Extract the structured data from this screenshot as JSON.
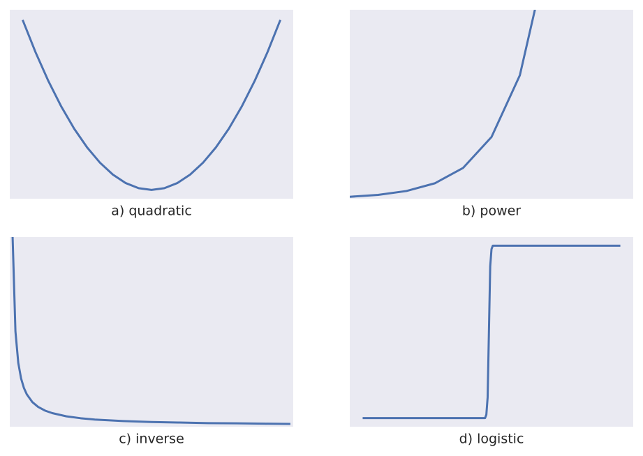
{
  "chart_data": [
    {
      "type": "line",
      "title": "a) quadratic",
      "color": "#4c72b0",
      "x": [
        -5,
        -4.5,
        -4,
        -3.5,
        -3,
        -2.5,
        -2,
        -1.5,
        -1,
        -0.5,
        0,
        0.5,
        1,
        1.5,
        2,
        2.5,
        3,
        3.5,
        4,
        4.5,
        5
      ],
      "values": [
        25,
        20.25,
        16,
        12.25,
        9,
        6.25,
        4,
        2.25,
        1,
        0.25,
        0,
        0.25,
        1,
        2.25,
        4,
        6.25,
        9,
        12.25,
        16,
        20.25,
        25
      ],
      "xlim": [
        -5.5,
        5.5
      ],
      "ylim": [
        -1.3,
        26.5
      ]
    },
    {
      "type": "line",
      "title": "b) power",
      "color": "#4c72b0",
      "x": [
        0,
        1,
        2,
        3,
        4,
        5,
        6,
        7
      ],
      "values": [
        1,
        2,
        4,
        8,
        16,
        32,
        64,
        128
      ],
      "xlim": [
        0,
        10
      ],
      "ylim": [
        0,
        98
      ]
    },
    {
      "type": "line",
      "title": "c) inverse",
      "color": "#4c72b0",
      "x": [
        0.1,
        0.2,
        0.3,
        0.4,
        0.5,
        0.6,
        0.8,
        1,
        1.25,
        1.5,
        2,
        2.5,
        3,
        4,
        5,
        6,
        7,
        8,
        9,
        9.9
      ],
      "values": [
        10,
        5,
        3.33,
        2.5,
        2,
        1.67,
        1.25,
        1,
        0.8,
        0.67,
        0.5,
        0.4,
        0.33,
        0.25,
        0.2,
        0.17,
        0.14,
        0.13,
        0.11,
        0.1
      ],
      "xlim": [
        0,
        10
      ],
      "ylim": [
        -0.05,
        10
      ]
    },
    {
      "type": "line",
      "title": "d) logistic",
      "color": "#4c72b0",
      "x": [
        -10,
        -0.5,
        -0.4,
        -0.3,
        -0.2,
        -0.1,
        0,
        0.1,
        0.2,
        10
      ],
      "values": [
        0,
        0,
        0.02,
        0.12,
        0.5,
        0.88,
        0.98,
        1,
        1,
        1
      ],
      "xlim": [
        -11,
        11
      ],
      "ylim": [
        -0.05,
        1.05
      ]
    }
  ]
}
